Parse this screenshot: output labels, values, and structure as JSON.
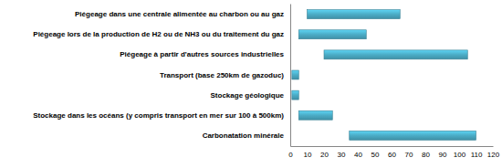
{
  "chart_data": {
    "type": "bar",
    "orientation": "horizontal",
    "categories": [
      "Piégeage dans une centrale alimentée au charbon ou au gaz",
      "Piégeage lors de la production de H2 ou de NH3 ou du traitement du gaz",
      "Piégeage à partir d'autres sources industrielles",
      "Transport (base 250km de gazoduc)",
      "Stockage géologique",
      "Stockage dans les océans (y compris transport en mer sur 100 à 500km)",
      "Carbonatation minérale"
    ],
    "values": [
      [
        10,
        65
      ],
      [
        5,
        45
      ],
      [
        20,
        105
      ],
      [
        1,
        5
      ],
      [
        1,
        5
      ],
      [
        5,
        25
      ],
      [
        35,
        110
      ]
    ],
    "color": "#4bacc6",
    "xlim": [
      0,
      120
    ],
    "xticks": [
      0,
      10,
      20,
      30,
      40,
      50,
      60,
      70,
      80,
      90,
      100,
      110,
      120
    ],
    "grid": false
  }
}
